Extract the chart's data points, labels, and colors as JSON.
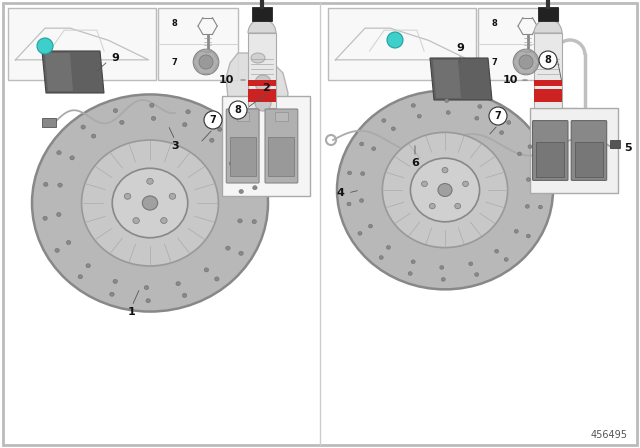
{
  "diagram_number": "456495",
  "bg": "#ffffff",
  "teal": "#3ecfca",
  "gray_disc": "#b8b8b8",
  "gray_hub": "#c8c8c8",
  "gray_dark": "#888888",
  "gray_light": "#e0e0e0",
  "pad_gray": "#aaaaaa",
  "wire_color": "#999999",
  "red_band": "#cc2222",
  "black_cap": "#222222"
}
